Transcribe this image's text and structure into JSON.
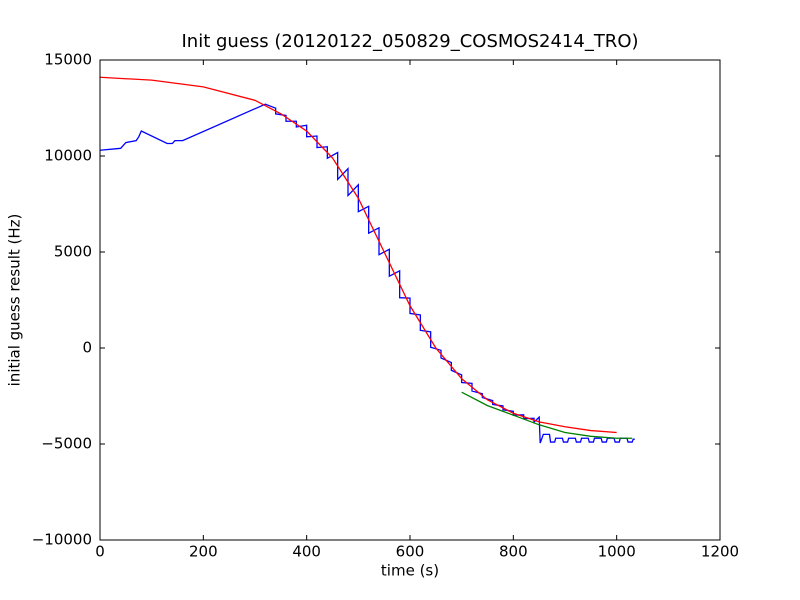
{
  "chart_data": {
    "type": "line",
    "title": "Init guess (20120122_050829_COSMOS2414_TRO)",
    "x_label": "time (s)",
    "y_label": "initial guess result (Hz)",
    "xlim": [
      0,
      1200
    ],
    "xticks": [
      0,
      200,
      400,
      600,
      800,
      1000,
      1200
    ],
    "ylim": [
      -10000,
      15000
    ],
    "yticks": [
      {
        "value": -10000,
        "label": "−10000"
      },
      {
        "value": -5000,
        "label": "−5000"
      },
      0,
      5000,
      10000,
      15000
    ],
    "series": [
      {
        "color": "#0000ff",
        "x": [
          0,
          40,
          50,
          70,
          75,
          80,
          130,
          140,
          145,
          160,
          320,
          340,
          340,
          360,
          360,
          380,
          380,
          400,
          400,
          420,
          420,
          440,
          440,
          460,
          460,
          480,
          480,
          500,
          500,
          520,
          520,
          540,
          540,
          560,
          560,
          580,
          580,
          600,
          600,
          620,
          620,
          640,
          640,
          660,
          660,
          680,
          680,
          700,
          700,
          720,
          720,
          740,
          740,
          760,
          760,
          780,
          780,
          800,
          800,
          820,
          820,
          840,
          840,
          850,
          852,
          858,
          870,
          872,
          880,
          882,
          895,
          897,
          905,
          907,
          920,
          922,
          930,
          932,
          945,
          947,
          955,
          957,
          970,
          972,
          980,
          982,
          995,
          997,
          1005,
          1007,
          1020,
          1022,
          1030,
          1032,
          1035
        ],
        "values": [
          10300,
          10400,
          10700,
          10800,
          11000,
          11300,
          10650,
          10650,
          10800,
          10800,
          12700,
          12490,
          12190,
          12110,
          11810,
          11810,
          11510,
          11600,
          11000,
          11040,
          10440,
          10480,
          9880,
          10180,
          8780,
          9340,
          7940,
          8500,
          7100,
          7380,
          5980,
          6260,
          4860,
          5140,
          3740,
          4020,
          2620,
          2600,
          1800,
          1720,
          920,
          840,
          40,
          -120,
          -520,
          -760,
          -1160,
          -1400,
          -1800,
          -1840,
          -2240,
          -2380,
          -2580,
          -2740,
          -2940,
          -3020,
          -3220,
          -3300,
          -3500,
          -3480,
          -3680,
          -3660,
          -3860,
          -3600,
          -4950,
          -4500,
          -4500,
          -4900,
          -4900,
          -4700,
          -4700,
          -4900,
          -4900,
          -4700,
          -4700,
          -4900,
          -4900,
          -4700,
          -4700,
          -4900,
          -4900,
          -4700,
          -4700,
          -4900,
          -4900,
          -4700,
          -4700,
          -4900,
          -4900,
          -4700,
          -4700,
          -4900,
          -4900,
          -4750,
          -4750
        ]
      },
      {
        "color": "#008000",
        "x": [
          700,
          750,
          800,
          850,
          900,
          950,
          1000,
          1030
        ],
        "values": [
          -2300,
          -3000,
          -3500,
          -4000,
          -4400,
          -4600,
          -4700,
          -4700
        ]
      },
      {
        "color": "#ff0000",
        "x": [
          0,
          100,
          200,
          300,
          350,
          400,
          450,
          500,
          550,
          600,
          650,
          700,
          750,
          800,
          850,
          900,
          950,
          1000
        ],
        "values": [
          14100,
          13950,
          13600,
          12900,
          12200,
          11300,
          9900,
          7800,
          5000,
          2200,
          0,
          -1600,
          -2700,
          -3400,
          -3850,
          -4100,
          -4300,
          -4400
        ]
      }
    ]
  }
}
